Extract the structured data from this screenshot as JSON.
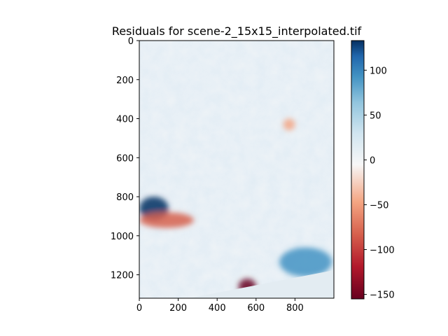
{
  "chart_data": {
    "type": "heatmap",
    "title": "Residuals for scene-2_15x15_interpolated.tif",
    "xlabel": "",
    "ylabel": "",
    "xlim": [
      0,
      1000
    ],
    "ylim": [
      1320,
      0
    ],
    "x_ticks": [
      0,
      200,
      400,
      600,
      800
    ],
    "y_ticks": [
      0,
      200,
      400,
      600,
      800,
      1000,
      1200
    ],
    "colormap": "RdBu",
    "colorbar": {
      "vmin": -155,
      "vmax": 133,
      "ticks": [
        100,
        50,
        0,
        -50,
        -100,
        -150
      ],
      "tick_labels": [
        "100",
        "50",
        "0",
        "−50",
        "−100",
        "−150"
      ]
    },
    "colors": {
      "dark_red": "#67001f",
      "red": "#d6604d",
      "light_red": "#f4a582",
      "neutral": "#f7f7f7",
      "light_blue": "#92c5de",
      "blue": "#4393c3",
      "dark_blue": "#053061",
      "nodata": "#e3ecf2"
    },
    "features": [
      {
        "name": "strong positive band",
        "x": [
          0,
          150
        ],
        "y": [
          800,
          920
        ],
        "value": 120
      },
      {
        "name": "positive band lower right",
        "x": [
          720,
          990
        ],
        "y": [
          1060,
          1210
        ],
        "value": 60
      },
      {
        "name": "negative streak",
        "x": [
          0,
          280
        ],
        "y": [
          880,
          960
        ],
        "value": -50
      },
      {
        "name": "strong negative spot",
        "x": [
          510,
          600
        ],
        "y": [
          1220,
          1300
        ],
        "value": -150
      },
      {
        "name": "negative spot",
        "x": [
          740,
          800
        ],
        "y": [
          400,
          460
        ],
        "value": -40
      }
    ]
  }
}
